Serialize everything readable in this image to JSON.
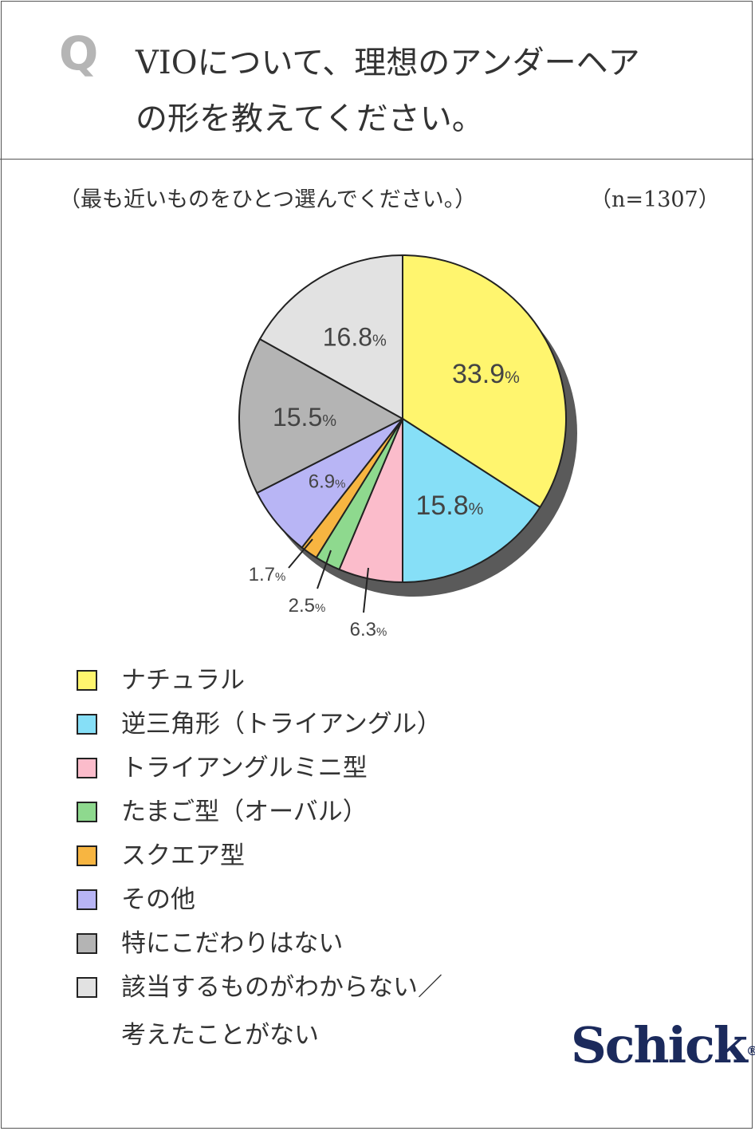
{
  "question": {
    "mark": "Q",
    "line1": "VIOについて、理想のアンダーヘア",
    "line2": "の形を教えてください。"
  },
  "subtitle": "（最も近いものをひとつ選んでください。）",
  "sample_size": "（n=1307）",
  "chart_data": {
    "type": "pie",
    "unit": "%",
    "slices": [
      {
        "label": "ナチュラル",
        "value": 33.9,
        "display": "33.9",
        "color": "#fff56e"
      },
      {
        "label": "逆三角形（トライアングル）",
        "value": 15.8,
        "display": "15.8",
        "color": "#86dff7"
      },
      {
        "label": "トライアングルミニ型",
        "value": 6.3,
        "display": "6.3",
        "color": "#fbbccb"
      },
      {
        "label": "たまご型（オーバル）",
        "value": 2.5,
        "display": "2.5",
        "color": "#8ed98e"
      },
      {
        "label": "スクエア型",
        "value": 1.7,
        "display": "1.7",
        "color": "#f7b541"
      },
      {
        "label": "その他",
        "value": 6.9,
        "display": "6.9",
        "color": "#b8b5f5"
      },
      {
        "label": "特にこだわりはない",
        "value": 15.5,
        "display": "15.5",
        "color": "#b4b4b4"
      },
      {
        "label": "該当するものがわからない／考えたことがない",
        "value": 16.8,
        "display": "16.8",
        "color": "#e2e2e2"
      }
    ]
  },
  "legend": {
    "items": [
      {
        "line1": "ナチュラル",
        "line2": ""
      },
      {
        "line1": "逆三角形（トライアングル）",
        "line2": ""
      },
      {
        "line1": "トライアングルミニ型",
        "line2": ""
      },
      {
        "line1": "たまご型（オーバル）",
        "line2": ""
      },
      {
        "line1": "スクエア型",
        "line2": ""
      },
      {
        "line1": "その他",
        "line2": ""
      },
      {
        "line1": "特にこだわりはない",
        "line2": ""
      },
      {
        "line1": "該当するものがわからない／",
        "line2": "考えたことがない"
      }
    ]
  },
  "brand": {
    "name": "Schick",
    "mark": "®"
  }
}
